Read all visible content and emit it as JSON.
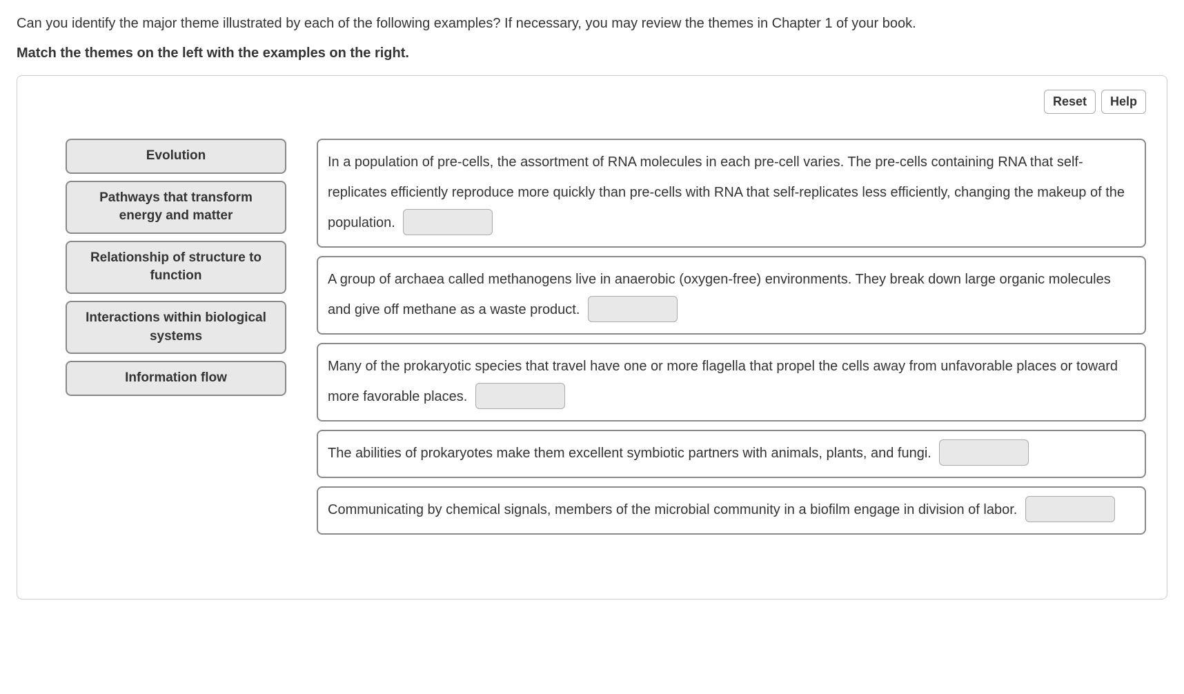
{
  "question": "Can you identify the major theme illustrated by each of the following examples? If necessary, you may review the themes in Chapter 1 of your book.",
  "instruction": "Match the themes on the left with the examples on the right.",
  "buttons": {
    "reset": "Reset",
    "help": "Help"
  },
  "themes": [
    "Evolution",
    "Pathways that transform energy and matter",
    "Relationship of structure to function",
    "Interactions within biological systems",
    "Information flow"
  ],
  "examples": [
    "In a population of pre-cells, the assortment of RNA molecules in each pre-cell varies. The pre-cells containing RNA that self-replicates efficiently reproduce more quickly than pre-cells with RNA that self-replicates less efficiently, changing the makeup of the population.",
    "A group of archaea called methanogens live in anaerobic (oxygen-free) environments. They break down large organic molecules and give off methane as a waste product.",
    "Many of the prokaryotic species that travel have one or more flagella that propel the cells away from unfavorable places or toward more favorable places.",
    "The abilities of prokaryotes make them excellent symbiotic partners with animals, plants, and fungi.",
    "Communicating by chemical signals, members of the microbial community in a biofilm engage in division of labor."
  ]
}
